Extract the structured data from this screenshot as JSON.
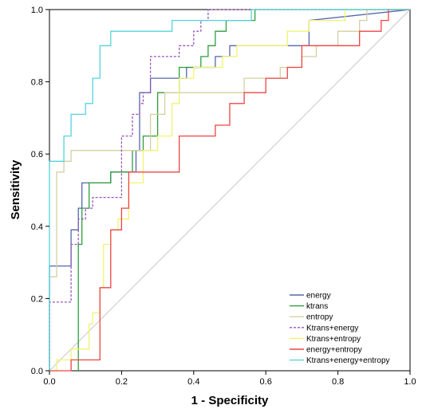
{
  "chart_data": {
    "type": "line",
    "title": "",
    "xlabel": "1 - Specificity",
    "ylabel": "Sensitivity",
    "xlim": [
      0,
      1
    ],
    "ylim": [
      0,
      1
    ],
    "xticks": [
      "0.0",
      "0.2",
      "0.4",
      "0.6",
      "0.8",
      "1.0"
    ],
    "yticks": [
      "0.0",
      "0.2",
      "0.4",
      "0.6",
      "0.8",
      "1.0"
    ],
    "grid": false,
    "legend_position": "bottom-right",
    "reference_line": {
      "x": [
        0,
        1
      ],
      "y": [
        0,
        1
      ],
      "color": "#c8c8c8"
    },
    "series": [
      {
        "name": "energy",
        "color": "#5566aa",
        "dashed": false,
        "x": [
          0,
          0,
          0.06,
          0.06,
          0.08,
          0.08,
          0.09,
          0.09,
          0.17,
          0.17,
          0.24,
          0.24,
          0.25,
          0.25,
          0.28,
          0.28,
          0.38,
          0.38,
          0.46,
          0.46,
          0.5,
          0.5,
          0.72,
          0.72,
          1.0
        ],
        "y": [
          0,
          0.29,
          0.29,
          0.39,
          0.39,
          0.45,
          0.45,
          0.52,
          0.52,
          0.55,
          0.55,
          0.61,
          0.61,
          0.77,
          0.77,
          0.81,
          0.81,
          0.84,
          0.84,
          0.87,
          0.87,
          0.9,
          0.9,
          0.97,
          1.0
        ]
      },
      {
        "name": "ktrans",
        "color": "#2e9e3e",
        "dashed": false,
        "x": [
          0.08,
          0.08,
          0.09,
          0.09,
          0.11,
          0.11,
          0.17,
          0.17,
          0.23,
          0.23,
          0.26,
          0.26,
          0.3,
          0.3,
          0.36,
          0.36,
          0.42,
          0.42,
          0.44,
          0.44,
          0.46,
          0.46,
          0.49,
          0.49,
          0.57,
          0.57,
          1.0
        ],
        "y": [
          0,
          0.35,
          0.35,
          0.45,
          0.45,
          0.52,
          0.52,
          0.55,
          0.55,
          0.61,
          0.61,
          0.65,
          0.65,
          0.77,
          0.77,
          0.84,
          0.84,
          0.87,
          0.87,
          0.9,
          0.9,
          0.94,
          0.94,
          0.97,
          0.97,
          1.0,
          1.0
        ]
      },
      {
        "name": "entropy",
        "color": "#d4cfa2",
        "dashed": false,
        "x": [
          0,
          0,
          0.02,
          0.02,
          0.04,
          0.04,
          0.06,
          0.06,
          0.11,
          0.11,
          0.28,
          0.28,
          0.32,
          0.32,
          0.54,
          0.54,
          0.64,
          0.64,
          0.7,
          0.7,
          0.74,
          0.74,
          0.8,
          0.8,
          0.86,
          0.86,
          0.88,
          0.88,
          0.96,
          0.96,
          1.0
        ],
        "y": [
          0,
          0.26,
          0.26,
          0.55,
          0.55,
          0.58,
          0.58,
          0.61,
          0.61,
          0.61,
          0.61,
          0.71,
          0.71,
          0.77,
          0.77,
          0.81,
          0.81,
          0.84,
          0.84,
          0.87,
          0.87,
          0.9,
          0.9,
          0.94,
          0.94,
          0.97,
          0.97,
          1.0,
          1.0,
          1.0,
          1.0
        ]
      },
      {
        "name": "Ktrans+energy",
        "color": "#9955bb",
        "dashed": true,
        "x": [
          0,
          0,
          0.06,
          0.06,
          0.08,
          0.08,
          0.1,
          0.1,
          0.12,
          0.12,
          0.2,
          0.2,
          0.23,
          0.23,
          0.25,
          0.25,
          0.26,
          0.26,
          0.28,
          0.28,
          0.36,
          0.36,
          0.4,
          0.4,
          0.42,
          0.42,
          0.44,
          0.44,
          1.0
        ],
        "y": [
          0,
          0.19,
          0.19,
          0.35,
          0.35,
          0.42,
          0.42,
          0.45,
          0.45,
          0.48,
          0.48,
          0.65,
          0.65,
          0.71,
          0.71,
          0.74,
          0.74,
          0.77,
          0.77,
          0.87,
          0.87,
          0.9,
          0.9,
          0.94,
          0.94,
          0.97,
          0.97,
          1.0,
          1.0
        ]
      },
      {
        "name": "Ktrans+entropy",
        "color": "#f2f270",
        "dashed": false,
        "x": [
          0,
          0.02,
          0.02,
          0.06,
          0.06,
          0.11,
          0.11,
          0.12,
          0.12,
          0.14,
          0.14,
          0.15,
          0.15,
          0.17,
          0.17,
          0.19,
          0.19,
          0.22,
          0.22,
          0.26,
          0.26,
          0.3,
          0.3,
          0.34,
          0.34,
          0.36,
          0.36,
          0.4,
          0.4,
          0.48,
          0.48,
          0.52,
          0.52,
          0.66,
          0.66,
          0.72,
          0.72,
          0.82,
          0.82,
          0.92,
          0.92,
          1.0
        ],
        "y": [
          0,
          0,
          0.03,
          0.03,
          0.06,
          0.06,
          0.13,
          0.13,
          0.16,
          0.16,
          0.23,
          0.23,
          0.35,
          0.35,
          0.39,
          0.39,
          0.42,
          0.42,
          0.52,
          0.52,
          0.61,
          0.61,
          0.65,
          0.65,
          0.74,
          0.74,
          0.81,
          0.81,
          0.84,
          0.84,
          0.87,
          0.87,
          0.9,
          0.9,
          0.94,
          0.94,
          0.97,
          0.97,
          1.0,
          1.0,
          1.0,
          1.0
        ]
      },
      {
        "name": "energy+entropy",
        "color": "#ee4444",
        "dashed": false,
        "x": [
          0,
          0.06,
          0.06,
          0.14,
          0.14,
          0.17,
          0.17,
          0.2,
          0.2,
          0.22,
          0.22,
          0.36,
          0.36,
          0.46,
          0.46,
          0.5,
          0.5,
          0.54,
          0.54,
          0.6,
          0.6,
          0.66,
          0.66,
          0.7,
          0.7,
          0.86,
          0.86,
          0.92,
          0.92,
          0.94,
          0.94,
          1.0
        ],
        "y": [
          0,
          0,
          0.03,
          0.03,
          0.23,
          0.23,
          0.39,
          0.39,
          0.45,
          0.45,
          0.55,
          0.55,
          0.65,
          0.65,
          0.68,
          0.68,
          0.74,
          0.74,
          0.77,
          0.77,
          0.81,
          0.81,
          0.84,
          0.84,
          0.9,
          0.9,
          0.94,
          0.94,
          0.97,
          0.97,
          1.0,
          1.0
        ]
      },
      {
        "name": "Ktrans+energy+entropy",
        "color": "#55d4dc",
        "dashed": false,
        "x": [
          0,
          0,
          0.04,
          0.04,
          0.06,
          0.06,
          0.1,
          0.1,
          0.12,
          0.12,
          0.14,
          0.14,
          0.17,
          0.17,
          0.34,
          0.34,
          0.56,
          0.56,
          0.74,
          0.74,
          1.0
        ],
        "y": [
          0,
          0.58,
          0.58,
          0.65,
          0.65,
          0.71,
          0.71,
          0.74,
          0.74,
          0.81,
          0.81,
          0.9,
          0.9,
          0.94,
          0.94,
          0.97,
          0.97,
          1.0,
          1.0,
          1.0,
          1.0
        ]
      }
    ]
  }
}
